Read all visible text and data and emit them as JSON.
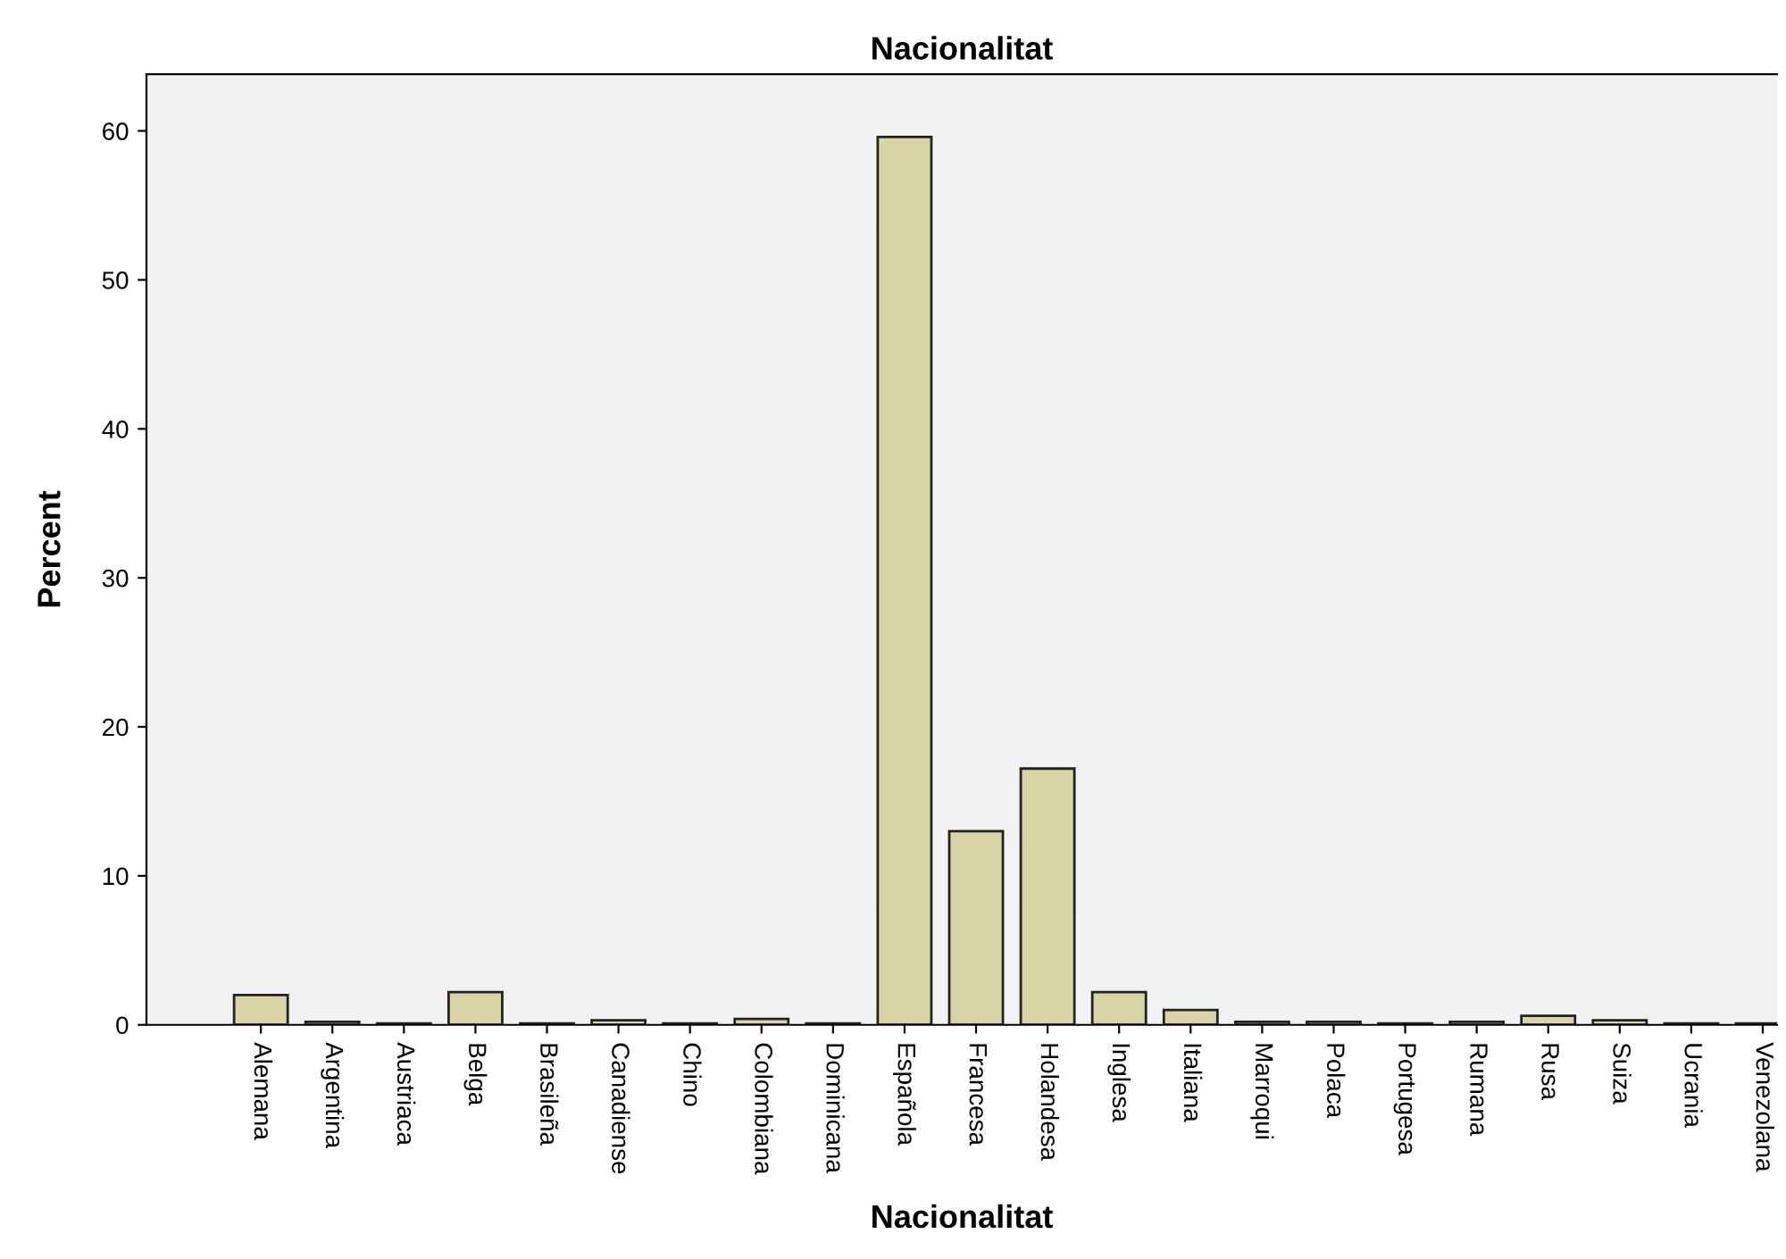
{
  "chart_data": {
    "type": "bar",
    "title": "Nacionalitat",
    "xlabel": "Nacionalitat",
    "ylabel": "Percent",
    "categories": [
      "Alemana",
      "Argentina",
      "Austriaca",
      "Belga",
      "Brasileña",
      "Canadiense",
      "Chino",
      "Colombiana",
      "Dominicana",
      "Española",
      "Francesa",
      "Holandesa",
      "Inglesa",
      "Italiana",
      "Marroqui",
      "Polaca",
      "Portugesa",
      "Rumana",
      "Rusa",
      "Suiza",
      "Ucrania",
      "Venezolana"
    ],
    "values": [
      2.0,
      0.2,
      0.1,
      2.2,
      0.1,
      0.3,
      0.1,
      0.4,
      0.1,
      59.6,
      13.0,
      17.2,
      2.2,
      1.0,
      0.2,
      0.2,
      0.1,
      0.2,
      0.6,
      0.3,
      0.1,
      0.1
    ],
    "color": "#d9d4a5",
    "ylim": [
      0,
      63.8
    ],
    "yticks": [
      0,
      10,
      20,
      30,
      40,
      50,
      60
    ],
    "grid": false,
    "legend": false
  }
}
